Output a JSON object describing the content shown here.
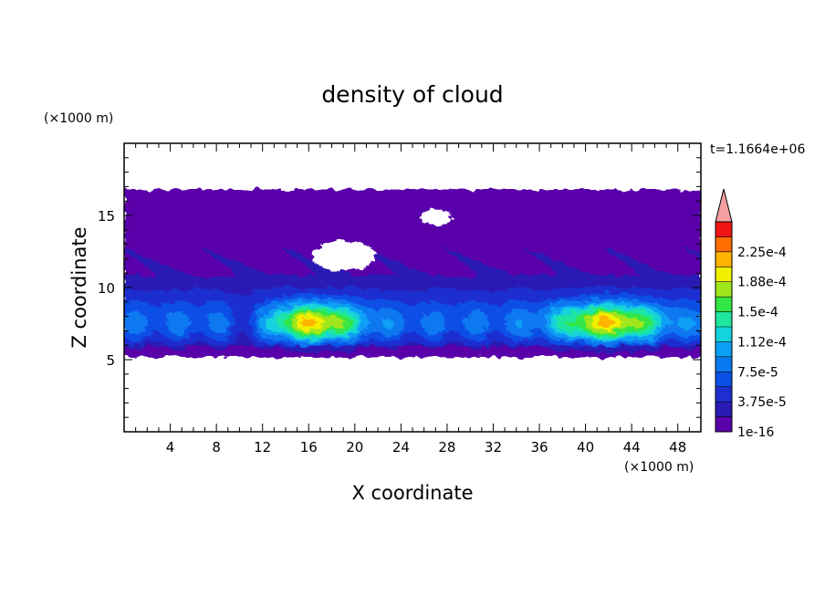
{
  "chart_data": {
    "type": "heatmap",
    "title": "density of cloud",
    "time_label": "t=1.1664e+06",
    "xlabel": "X coordinate",
    "ylabel": "Z coordinate",
    "x_unit": "(×1000 m)",
    "y_unit": "(×1000 m)",
    "xlim": [
      0,
      50
    ],
    "ylim": [
      0,
      20
    ],
    "x_ticks": [
      4,
      8,
      12,
      16,
      20,
      24,
      28,
      32,
      36,
      40,
      44,
      48
    ],
    "y_ticks": [
      5,
      10,
      15
    ],
    "colorbar": {
      "labels": [
        "1e-16",
        "3.75e-5",
        "7.5e-5",
        "1.12e-4",
        "1.5e-4",
        "1.88e-4",
        "2.25e-4"
      ],
      "levels": [
        1e-16,
        1.875e-05,
        3.75e-05,
        5.625e-05,
        7.5e-05,
        9.375e-05,
        0.0001125,
        0.00013125,
        0.00015,
        0.00016875,
        0.0001875,
        0.00020625,
        0.000225,
        0.00024375
      ],
      "colors": [
        "#5a00aa",
        "#2a1ab4",
        "#1e2fd0",
        "#0a50e6",
        "#0a78f0",
        "#0aa0f5",
        "#14d2dc",
        "#1ee6a0",
        "#32e646",
        "#a0e61e",
        "#f0f000",
        "#ffb400",
        "#ff6e00",
        "#f01414"
      ],
      "overflow_color": "#f4a0a0",
      "extend": "max"
    },
    "cloud_layer": {
      "base_z": 5.2,
      "top_z": 16.8,
      "max_value_approx": 0.0002,
      "peak_regions": [
        {
          "x_range": [
            13,
            20
          ],
          "z_range": [
            6,
            9
          ]
        },
        {
          "x_range": [
            38,
            46
          ],
          "z_range": [
            6,
            9
          ]
        }
      ]
    }
  }
}
